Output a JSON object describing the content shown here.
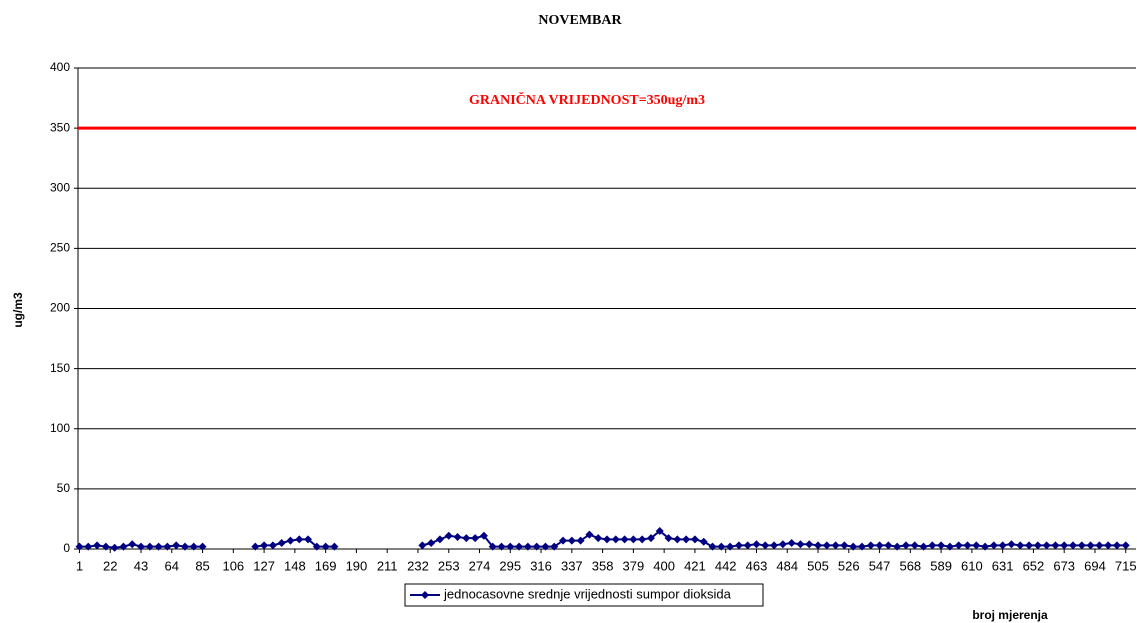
{
  "chart_data": {
    "type": "line",
    "title": "NOVEMBAR",
    "y_label": "ug/m3",
    "x_label": "broj mjerenja",
    "x": [
      1,
      7,
      13,
      19,
      25,
      31,
      37,
      43,
      49,
      55,
      61,
      67,
      73,
      79,
      85,
      91,
      97,
      103,
      109,
      115,
      121,
      127,
      133,
      139,
      145,
      151,
      157,
      163,
      169,
      175,
      181,
      187,
      193,
      199,
      205,
      211,
      217,
      223,
      229,
      235,
      241,
      247,
      253,
      259,
      265,
      271,
      277,
      283,
      289,
      295,
      301,
      307,
      313,
      319,
      325,
      331,
      337,
      343,
      349,
      355,
      361,
      367,
      373,
      379,
      385,
      391,
      397,
      403,
      409,
      415,
      421,
      427,
      433,
      439,
      445,
      451,
      457,
      463,
      469,
      475,
      481,
      487,
      493,
      499,
      505,
      511,
      517,
      523,
      529,
      535,
      541,
      547,
      553,
      559,
      565,
      571,
      577,
      583,
      589,
      595,
      601,
      607,
      613,
      619,
      625,
      631,
      637,
      643,
      649,
      655,
      661,
      667,
      673,
      679,
      685,
      691,
      697,
      703,
      709,
      715
    ],
    "series": [
      {
        "name": "jednocasovne srednje vrijednosti sumpor dioksida",
        "color": "#000080",
        "values": [
          2,
          2,
          3,
          2,
          1,
          2,
          4,
          2,
          2,
          2,
          2,
          3,
          2,
          2,
          2,
          null,
          null,
          null,
          null,
          null,
          2,
          3,
          3,
          5,
          7,
          8,
          8,
          2,
          2,
          2,
          null,
          null,
          null,
          null,
          null,
          null,
          null,
          null,
          null,
          3,
          5,
          8,
          11,
          10,
          9,
          9,
          11,
          2,
          2,
          2,
          2,
          2,
          2,
          2,
          2,
          7,
          7,
          7,
          12,
          9,
          8,
          8,
          8,
          8,
          8,
          9,
          15,
          9,
          8,
          8,
          8,
          6,
          2,
          2,
          2,
          3,
          3,
          4,
          3,
          3,
          4,
          5,
          4,
          4,
          3,
          3,
          3,
          3,
          2,
          2,
          3,
          3,
          3,
          2,
          3,
          3,
          2,
          3,
          3,
          2,
          3,
          3,
          3,
          2,
          3,
          3,
          4,
          3,
          3,
          3,
          3,
          3,
          3,
          3,
          3,
          3,
          3,
          3,
          3,
          3
        ]
      }
    ],
    "xlim": [
      0,
      722
    ],
    "xticks": [
      1,
      22,
      43,
      64,
      85,
      106,
      127,
      148,
      169,
      190,
      211,
      232,
      253,
      274,
      295,
      316,
      337,
      358,
      379,
      400,
      421,
      442,
      463,
      484,
      505,
      526,
      547,
      568,
      589,
      610,
      631,
      652,
      673,
      694,
      715
    ],
    "ylim": [
      0,
      400
    ],
    "yticks": [
      0,
      50,
      100,
      150,
      200,
      250,
      300,
      350,
      400
    ],
    "grid": true,
    "threshold": {
      "value": 350,
      "label": "GRANIČNA VRIJEDNOST=350ug/m3",
      "color": "#ff0000"
    },
    "legend": "bottom"
  }
}
